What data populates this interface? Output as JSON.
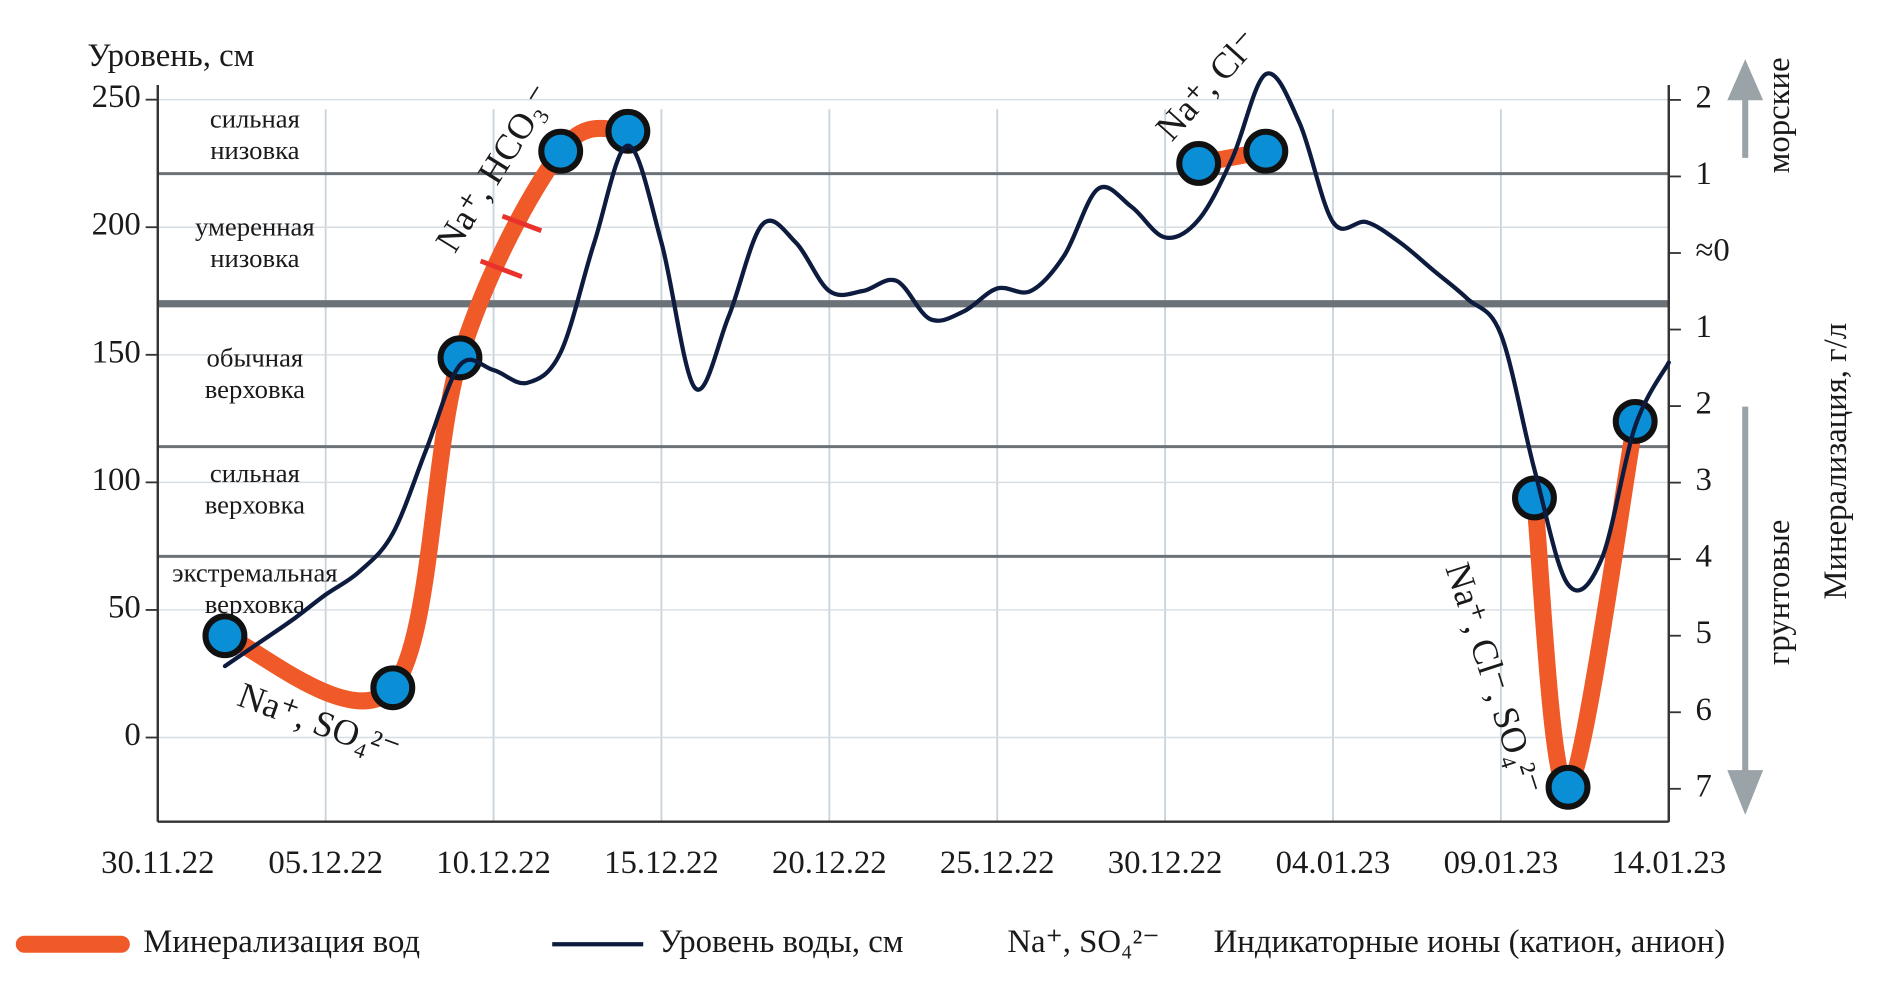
{
  "chart_data": {
    "type": "line",
    "y_label": "Уровень, см",
    "y2_label": "Минерализация, г/л",
    "y2_up_label": "морские",
    "y2_down_label": "грунтовые",
    "xlim": [
      "30.11.22",
      "14.01.23"
    ],
    "xticks": [
      "30.11.22",
      "05.12.22",
      "10.12.22",
      "15.12.22",
      "20.12.22",
      "25.12.22",
      "30.12.22",
      "04.01.23",
      "09.01.23",
      "14.01.23"
    ],
    "ylim": [
      -33,
      270
    ],
    "yticks": [
      0,
      50,
      100,
      150,
      200,
      250
    ],
    "y2lim": [
      -7.43,
      2.67
    ],
    "y2ticks": [
      2,
      1,
      {
        "value": 0,
        "label": "≈0"
      },
      {
        "value": -1,
        "label": "1"
      },
      {
        "value": -2,
        "label": "2"
      },
      {
        "value": -3,
        "label": "3"
      },
      {
        "value": -4,
        "label": "4"
      },
      {
        "value": -5,
        "label": "5"
      },
      {
        "value": -6,
        "label": "6"
      },
      {
        "value": -7,
        "label": "7"
      }
    ],
    "grid": true,
    "zone_boundaries": [
      221,
      170,
      114,
      71
    ],
    "surge_zones": [
      {
        "lines": [
          "сильная",
          "низовка"
        ]
      },
      {
        "lines": [
          "умеренная",
          "низовка"
        ]
      },
      {
        "lines": [
          "обычная",
          "верховка"
        ]
      },
      {
        "lines": [
          "сильная",
          "верховка"
        ]
      },
      {
        "lines": [
          "экстремальная",
          "верховка"
        ]
      }
    ],
    "ion_annotations": [
      "Na⁺, SO₄²⁻",
      "Na⁺, HCO₃⁻",
      "Na⁺, Cl⁻",
      "Na⁺, Cl⁻, SO₄²⁻"
    ],
    "series": [
      {
        "name": "Минерализация вод",
        "color": "#f05a28",
        "marker_color": "#0a8fd6",
        "axis": "y2",
        "x": [
          "02.12.22",
          "07.12.22",
          "09.12.22",
          "12.12.22",
          "14.12.22",
          "20.12.22",
          "31.12.22",
          "02.01.23",
          "06.01.23",
          "10.01.23",
          "11.01.23",
          "13.01.23"
        ],
        "values": [
          -5.0,
          -5.68,
          -1.37,
          1.33,
          1.59,
          null,
          1.17,
          1.33,
          null,
          -3.2,
          -6.98,
          -2.2
        ]
      },
      {
        "name": "Уровень воды, см",
        "color": "#0d1b3e",
        "x": [
          "02.12.22",
          "03.12.22",
          "04.12.22",
          "05.12.22",
          "06.12.22",
          "07.12.22",
          "08.12.22",
          "09.12.22",
          "10.12.22",
          "11.12.22",
          "12.12.22",
          "13.12.22",
          "14.12.22",
          "15.12.22",
          "16.12.22",
          "17.12.22",
          "18.12.22",
          "19.12.22",
          "20.12.22",
          "21.12.22",
          "22.12.22",
          "23.12.22",
          "24.12.22",
          "25.12.22",
          "26.12.22",
          "27.12.22",
          "28.12.22",
          "29.12.22",
          "30.12.22",
          "31.12.22",
          "01.01.23",
          "02.01.23",
          "03.01.23",
          "04.01.23",
          "05.01.23",
          "06.01.23",
          "07.01.23",
          "08.01.23",
          "09.01.23",
          "10.01.23",
          "11.01.23",
          "12.01.23",
          "13.01.23",
          "14.01.23"
        ],
        "values": [
          28,
          37,
          46,
          56,
          65,
          80,
          113,
          146,
          144,
          139,
          151,
          194,
          232,
          194,
          137,
          165,
          201,
          194,
          175,
          175,
          179,
          164,
          167,
          176,
          175,
          189,
          215,
          208,
          196,
          203,
          227,
          260,
          241,
          202,
          202,
          194,
          183,
          172,
          158,
          105,
          60,
          70,
          122,
          147
        ]
      }
    ],
    "legend": {
      "ion_example": "Na⁺, SO₄²⁻",
      "ion_text": "Индикаторные ионы (катион, анион)"
    }
  }
}
